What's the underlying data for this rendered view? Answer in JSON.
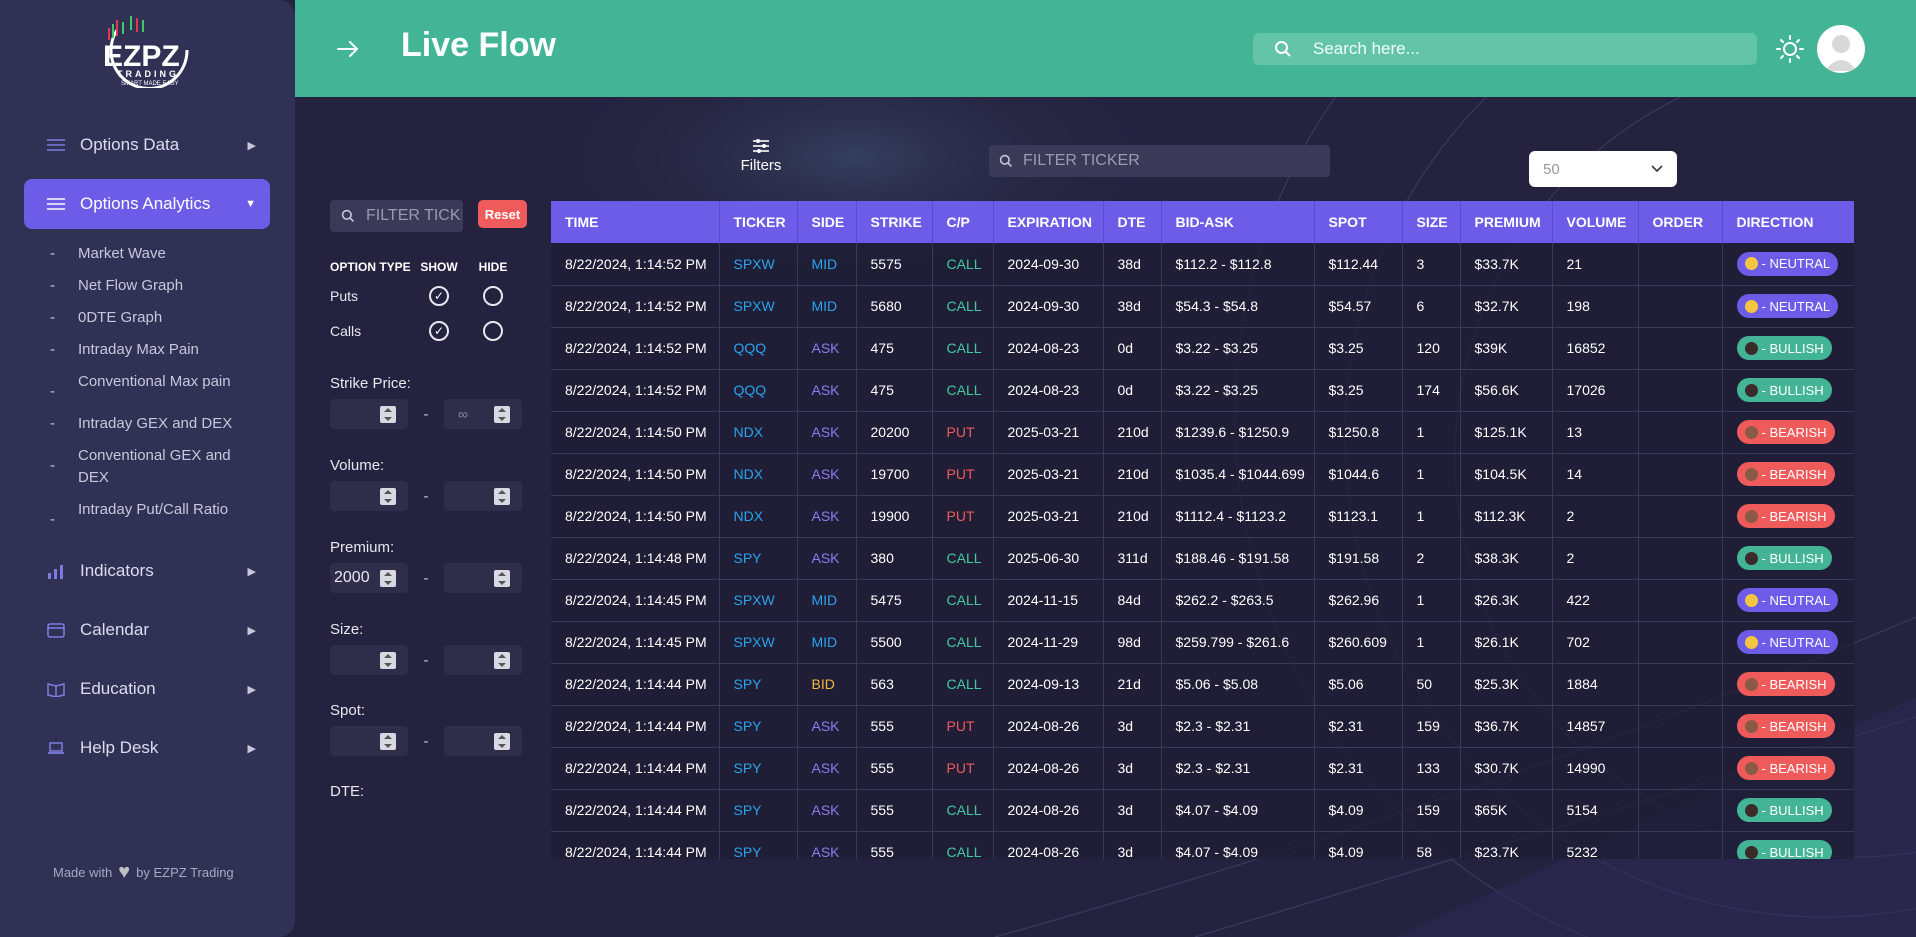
{
  "logo": {
    "text": "EZPZ",
    "sub": "TRADING",
    "tagline": "SMART MADE EASY"
  },
  "sidebar": {
    "items": [
      {
        "label": "Options Data",
        "icon": "layers-icon"
      },
      {
        "label": "Options Analytics",
        "icon": "layers-icon",
        "active": true
      },
      {
        "label": "Indicators",
        "icon": "bar-chart-icon"
      },
      {
        "label": "Calendar",
        "icon": "calendar-icon"
      },
      {
        "label": "Education",
        "icon": "book-icon"
      },
      {
        "label": "Help Desk",
        "icon": "laptop-icon"
      }
    ],
    "submenu": [
      "Market Wave",
      "Net Flow Graph",
      "0DTE Graph",
      "Intraday Max Pain",
      "Conventional Max pain",
      "Intraday GEX and DEX",
      "Conventional GEX and DEX",
      "Intraday Put/Call Ratio"
    ],
    "footer": {
      "pre": "Made with",
      "post": "by EZPZ Trading"
    }
  },
  "header": {
    "title": "Live Flow",
    "search_placeholder": "Search here..."
  },
  "filters": {
    "button_label": "Filters",
    "ticker_placeholder": "FILTER TICKER",
    "reset_label": "Reset",
    "option_type_header": "OPTION TYPE",
    "show_header": "SHOW",
    "hide_header": "HIDE",
    "puts_label": "Puts",
    "calls_label": "Calls",
    "strike_label": "Strike Price:",
    "strike_max_placeholder": "∞",
    "volume_label": "Volume:",
    "premium_label": "Premium:",
    "premium_min": "2000",
    "size_label": "Size:",
    "spot_label": "Spot:",
    "dte_label": "DTE:",
    "range_sep": "-"
  },
  "table_filter": {
    "placeholder": "FILTER TICKER"
  },
  "page_size": {
    "value": "50"
  },
  "table": {
    "columns": [
      "TIME",
      "TICKER",
      "SIDE",
      "STRIKE",
      "C/P",
      "EXPIRATION",
      "DTE",
      "BID-ASK",
      "SPOT",
      "SIZE",
      "PREMIUM",
      "VOLUME",
      "ORDER",
      "DIRECTION"
    ],
    "rows": [
      [
        "8/22/2024, 1:14:52 PM",
        "SPXW",
        "MID",
        "5575",
        "CALL",
        "2024-09-30",
        "38d",
        "$112.2 - $112.8",
        "$112.44",
        "3",
        "$33.7K",
        "21",
        "",
        "NEUTRAL"
      ],
      [
        "8/22/2024, 1:14:52 PM",
        "SPXW",
        "MID",
        "5680",
        "CALL",
        "2024-09-30",
        "38d",
        "$54.3 - $54.8",
        "$54.57",
        "6",
        "$32.7K",
        "198",
        "",
        "NEUTRAL"
      ],
      [
        "8/22/2024, 1:14:52 PM",
        "QQQ",
        "ASK",
        "475",
        "CALL",
        "2024-08-23",
        "0d",
        "$3.22 - $3.25",
        "$3.25",
        "120",
        "$39K",
        "16852",
        "",
        "BULLISH"
      ],
      [
        "8/22/2024, 1:14:52 PM",
        "QQQ",
        "ASK",
        "475",
        "CALL",
        "2024-08-23",
        "0d",
        "$3.22 - $3.25",
        "$3.25",
        "174",
        "$56.6K",
        "17026",
        "",
        "BULLISH"
      ],
      [
        "8/22/2024, 1:14:50 PM",
        "NDX",
        "ASK",
        "20200",
        "PUT",
        "2025-03-21",
        "210d",
        "$1239.6 - $1250.9",
        "$1250.8",
        "1",
        "$125.1K",
        "13",
        "",
        "BEARISH"
      ],
      [
        "8/22/2024, 1:14:50 PM",
        "NDX",
        "ASK",
        "19700",
        "PUT",
        "2025-03-21",
        "210d",
        "$1035.4 - $1044.699",
        "$1044.6",
        "1",
        "$104.5K",
        "14",
        "",
        "BEARISH"
      ],
      [
        "8/22/2024, 1:14:50 PM",
        "NDX",
        "ASK",
        "19900",
        "PUT",
        "2025-03-21",
        "210d",
        "$1112.4 - $1123.2",
        "$1123.1",
        "1",
        "$112.3K",
        "2",
        "",
        "BEARISH"
      ],
      [
        "8/22/2024, 1:14:48 PM",
        "SPY",
        "ASK",
        "380",
        "CALL",
        "2025-06-30",
        "311d",
        "$188.46 - $191.58",
        "$191.58",
        "2",
        "$38.3K",
        "2",
        "",
        "BULLISH"
      ],
      [
        "8/22/2024, 1:14:45 PM",
        "SPXW",
        "MID",
        "5475",
        "CALL",
        "2024-11-15",
        "84d",
        "$262.2 - $263.5",
        "$262.96",
        "1",
        "$26.3K",
        "422",
        "",
        "NEUTRAL"
      ],
      [
        "8/22/2024, 1:14:45 PM",
        "SPXW",
        "MID",
        "5500",
        "CALL",
        "2024-11-29",
        "98d",
        "$259.799 - $261.6",
        "$260.609",
        "1",
        "$26.1K",
        "702",
        "",
        "NEUTRAL"
      ],
      [
        "8/22/2024, 1:14:44 PM",
        "SPY",
        "BID",
        "563",
        "CALL",
        "2024-09-13",
        "21d",
        "$5.06 - $5.08",
        "$5.06",
        "50",
        "$25.3K",
        "1884",
        "",
        "BEARISH"
      ],
      [
        "8/22/2024, 1:14:44 PM",
        "SPY",
        "ASK",
        "555",
        "PUT",
        "2024-08-26",
        "3d",
        "$2.3 - $2.31",
        "$2.31",
        "159",
        "$36.7K",
        "14857",
        "",
        "BEARISH"
      ],
      [
        "8/22/2024, 1:14:44 PM",
        "SPY",
        "ASK",
        "555",
        "PUT",
        "2024-08-26",
        "3d",
        "$2.3 - $2.31",
        "$2.31",
        "133",
        "$30.7K",
        "14990",
        "",
        "BEARISH"
      ],
      [
        "8/22/2024, 1:14:44 PM",
        "SPY",
        "ASK",
        "555",
        "CALL",
        "2024-08-26",
        "3d",
        "$4.07 - $4.09",
        "$4.09",
        "159",
        "$65K",
        "5154",
        "",
        "BULLISH"
      ],
      [
        "8/22/2024, 1:14:44 PM",
        "SPY",
        "ASK",
        "555",
        "CALL",
        "2024-08-26",
        "3d",
        "$4.07 - $4.09",
        "$4.09",
        "58",
        "$23.7K",
        "5232",
        "",
        "BULLISH"
      ]
    ],
    "direction_prefix": "- "
  },
  "colors": {
    "header": "#43b596",
    "accent": "#6c5ce7",
    "bg": "#24223f",
    "sidebar": "#313156",
    "bullish": "#43b596",
    "bearish": "#ef5b5b",
    "neutral": "#6c5ce7"
  }
}
